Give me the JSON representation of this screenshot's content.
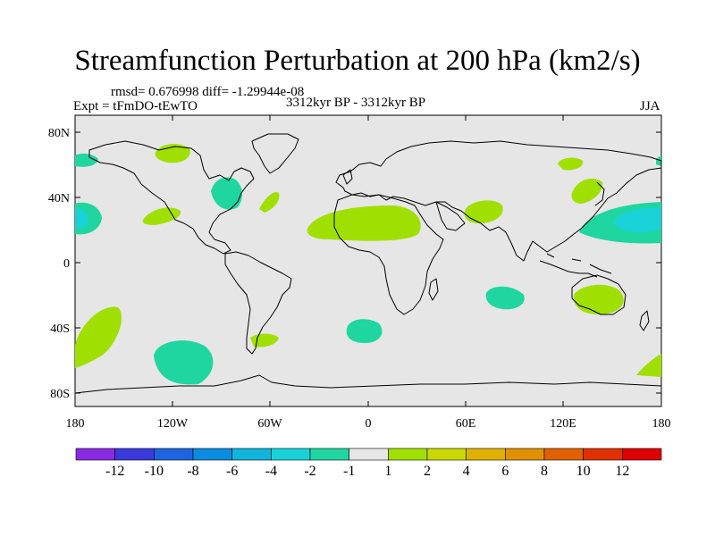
{
  "title": "Streamfunction Perturbation at 200 hPa (km2/s)",
  "stats": "rmsd= 0.676998 diff= -1.29944e-08",
  "experiment": "Expt = tFmDO-tEwTO",
  "period": "3312kyr BP - 3312kyr BP",
  "season": "JJA",
  "lat_labels": [
    "80N",
    "40N",
    "0",
    "40S",
    "80S"
  ],
  "lon_labels": [
    "180",
    "120W",
    "60W",
    "0",
    "60E",
    "120E",
    "180"
  ],
  "colorbar": {
    "colors": [
      "#8a2be2",
      "#3a3adb",
      "#1e64e0",
      "#0a8ce0",
      "#10b4dc",
      "#18d2d8",
      "#20d6a0",
      "#e6e6e6",
      "#a0e000",
      "#c8d800",
      "#e0b000",
      "#e09000",
      "#e06000",
      "#e03000",
      "#e00000"
    ],
    "labels": [
      "-12",
      "-10",
      "-8",
      "-6",
      "-4",
      "-2",
      "-1",
      "1",
      "2",
      "4",
      "6",
      "8",
      "10",
      "12"
    ]
  },
  "map_colors": {
    "background": "#e6e6e6",
    "negative": "#20d6a0",
    "negative_strong": "#18d2d8",
    "positive": "#a0e000",
    "coast": "#000000"
  }
}
